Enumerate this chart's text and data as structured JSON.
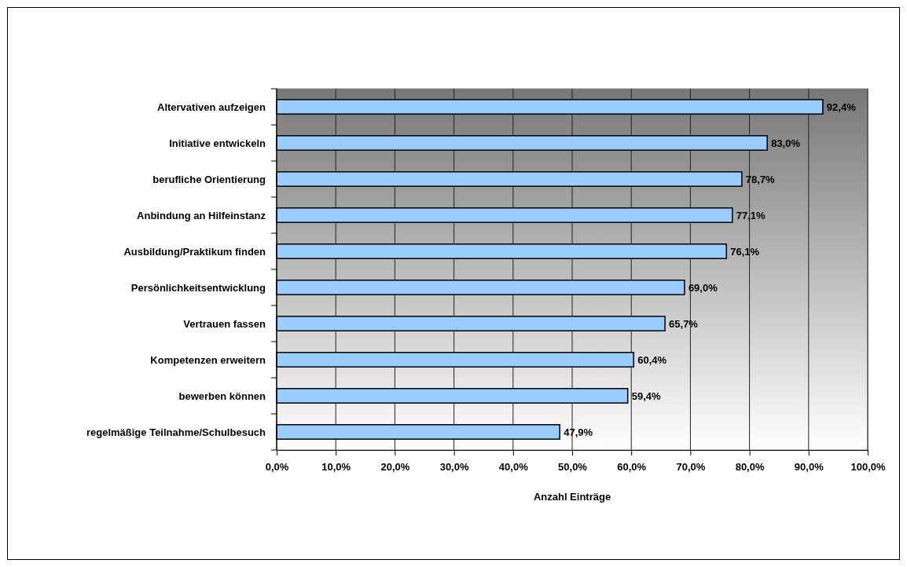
{
  "chart_data": {
    "type": "bar",
    "orientation": "horizontal",
    "xlabel": "Anzahl Einträge",
    "categories": [
      "Altervativen aufzeigen",
      "Initiative entwickeln",
      "berufliche Orientierung",
      "Anbindung an Hilfeinstanz",
      "Ausbildung/Praktikum finden",
      "Persönlichkeitsentwicklung",
      "Vertrauen fassen",
      "Kompetenzen erweitern",
      "bewerben können",
      "regelmäßige Teilnahme/Schulbesuch"
    ],
    "values": [
      92.4,
      83.0,
      78.7,
      77.1,
      76.1,
      69.0,
      65.7,
      60.4,
      59.4,
      47.9
    ],
    "value_labels": [
      "92,4%",
      "83,0%",
      "78,7%",
      "77,1%",
      "76,1%",
      "69,0%",
      "65,7%",
      "60,4%",
      "59,4%",
      "47,9%"
    ],
    "color": "#99ccff",
    "xlim": [
      0,
      100
    ],
    "xticks": [
      {
        "value": 0,
        "label": "0,0%"
      },
      {
        "value": 10,
        "label": "10,0%"
      },
      {
        "value": 20,
        "label": "20,0%"
      },
      {
        "value": 30,
        "label": "30,0%"
      },
      {
        "value": 40,
        "label": "40,0%"
      },
      {
        "value": 50,
        "label": "50,0%"
      },
      {
        "value": 60,
        "label": "60,0%"
      },
      {
        "value": 70,
        "label": "70,0%"
      },
      {
        "value": 80,
        "label": "80,0%"
      },
      {
        "value": 90,
        "label": "90,0%"
      },
      {
        "value": 100,
        "label": "100,0%"
      }
    ],
    "grid": "x"
  }
}
